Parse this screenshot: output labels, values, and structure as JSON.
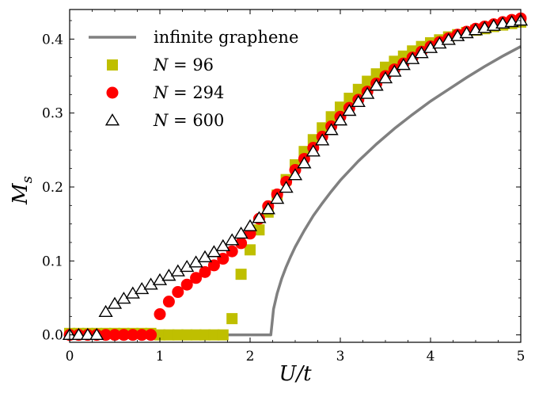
{
  "chart_data": {
    "type": "scatter",
    "xlabel": "U/t",
    "ylabel": "M_s",
    "xlim": [
      0,
      5
    ],
    "ylim": [
      -0.01,
      0.44
    ],
    "xticks": [
      0,
      1,
      2,
      3,
      4,
      5
    ],
    "yticks": [
      0.0,
      0.1,
      0.2,
      0.3,
      0.4
    ],
    "xtick_labels": [
      "0",
      "1",
      "2",
      "3",
      "4",
      "5"
    ],
    "ytick_labels": [
      "0.0",
      "0.1",
      "0.2",
      "0.3",
      "0.4"
    ],
    "grid": false,
    "legend_position": "top-left",
    "series": [
      {
        "name": "infinite graphene",
        "kind": "line",
        "color": "#808080",
        "x": [
          0,
          2.23,
          2.26,
          2.3,
          2.35,
          2.4,
          2.45,
          2.5,
          2.6,
          2.7,
          2.8,
          2.9,
          3.0,
          3.2,
          3.4,
          3.6,
          3.8,
          4.0,
          4.2,
          4.4,
          4.6,
          4.8,
          5.0
        ],
        "y": [
          0,
          0,
          0.035,
          0.056,
          0.076,
          0.092,
          0.106,
          0.119,
          0.141,
          0.161,
          0.178,
          0.194,
          0.209,
          0.235,
          0.258,
          0.279,
          0.298,
          0.316,
          0.332,
          0.348,
          0.363,
          0.377,
          0.39
        ]
      },
      {
        "name": "N = 96",
        "label_plain": "N = ",
        "label_num": "96",
        "kind": "square",
        "color": "#bfbf00",
        "x": [
          0.0,
          0.1,
          0.2,
          0.3,
          0.4,
          0.5,
          0.6,
          0.7,
          0.8,
          0.9,
          1.0,
          1.1,
          1.2,
          1.3,
          1.4,
          1.5,
          1.6,
          1.7,
          1.8,
          1.9,
          2.0,
          2.1,
          2.2,
          2.3,
          2.4,
          2.5,
          2.6,
          2.7,
          2.8,
          2.9,
          3.0,
          3.1,
          3.2,
          3.3,
          3.4,
          3.5,
          3.6,
          3.7,
          3.8,
          3.9,
          4.0,
          4.1,
          4.2,
          4.3,
          4.4,
          4.5,
          4.6,
          4.7,
          4.8,
          4.9,
          5.0
        ],
        "y": [
          0.002,
          0.002,
          0.002,
          0.002,
          0.002,
          0.002,
          0.002,
          0.002,
          0.002,
          0.002,
          0.0,
          0.0,
          0.0,
          0.0,
          0.0,
          0.0,
          0.0,
          0.0,
          0.022,
          0.082,
          0.115,
          0.142,
          0.166,
          0.189,
          0.21,
          0.23,
          0.248,
          0.264,
          0.28,
          0.295,
          0.308,
          0.32,
          0.332,
          0.343,
          0.353,
          0.362,
          0.37,
          0.377,
          0.384,
          0.39,
          0.395,
          0.399,
          0.403,
          0.406,
          0.409,
          0.412,
          0.414,
          0.417,
          0.419,
          0.421,
          0.423
        ]
      },
      {
        "name": "N = 294",
        "label_plain": "N = ",
        "label_num": "294",
        "kind": "circle",
        "color": "#ff0000",
        "x": [
          0.0,
          0.1,
          0.2,
          0.3,
          0.4,
          0.5,
          0.6,
          0.7,
          0.8,
          0.9,
          1.0,
          1.1,
          1.2,
          1.3,
          1.4,
          1.5,
          1.6,
          1.7,
          1.8,
          1.9,
          2.0,
          2.1,
          2.2,
          2.3,
          2.4,
          2.5,
          2.6,
          2.7,
          2.8,
          2.9,
          3.0,
          3.1,
          3.2,
          3.3,
          3.4,
          3.5,
          3.6,
          3.7,
          3.8,
          3.9,
          4.0,
          4.1,
          4.2,
          4.3,
          4.4,
          4.5,
          4.6,
          4.7,
          4.8,
          4.9,
          5.0
        ],
        "y": [
          0.0,
          0.0,
          0.0,
          0.0,
          0.0,
          0.0,
          0.0,
          0.0,
          0.0,
          0.0,
          0.028,
          0.045,
          0.058,
          0.068,
          0.077,
          0.085,
          0.094,
          0.103,
          0.113,
          0.124,
          0.137,
          0.157,
          0.174,
          0.19,
          0.207,
          0.223,
          0.238,
          0.253,
          0.268,
          0.282,
          0.295,
          0.307,
          0.318,
          0.329,
          0.34,
          0.35,
          0.359,
          0.367,
          0.375,
          0.383,
          0.39,
          0.396,
          0.401,
          0.406,
          0.41,
          0.414,
          0.417,
          0.42,
          0.423,
          0.426,
          0.428
        ]
      },
      {
        "name": "N = 600",
        "label_plain": "N = ",
        "label_num": "600",
        "kind": "triangle",
        "color": "#ffffff",
        "stroke": "#000000",
        "x": [
          0.0,
          0.1,
          0.2,
          0.3,
          0.4,
          0.5,
          0.6,
          0.7,
          0.8,
          0.9,
          1.0,
          1.1,
          1.2,
          1.3,
          1.4,
          1.5,
          1.6,
          1.7,
          1.8,
          1.9,
          2.0,
          2.1,
          2.2,
          2.3,
          2.4,
          2.5,
          2.6,
          2.7,
          2.8,
          2.9,
          3.0,
          3.1,
          3.2,
          3.3,
          3.4,
          3.5,
          3.6,
          3.7,
          3.8,
          3.9,
          4.0,
          4.1,
          4.2,
          4.3,
          4.4,
          4.5,
          4.6,
          4.7,
          4.8,
          4.9,
          5.0
        ],
        "y": [
          0.0,
          0.0,
          0.0,
          0.0,
          0.031,
          0.042,
          0.049,
          0.056,
          0.062,
          0.068,
          0.074,
          0.08,
          0.086,
          0.092,
          0.098,
          0.105,
          0.112,
          0.12,
          0.128,
          0.137,
          0.147,
          0.158,
          0.17,
          0.184,
          0.199,
          0.216,
          0.232,
          0.248,
          0.263,
          0.277,
          0.29,
          0.303,
          0.315,
          0.326,
          0.337,
          0.347,
          0.356,
          0.365,
          0.373,
          0.381,
          0.388,
          0.394,
          0.399,
          0.404,
          0.408,
          0.412,
          0.415,
          0.418,
          0.421,
          0.423,
          0.425
        ]
      }
    ]
  }
}
